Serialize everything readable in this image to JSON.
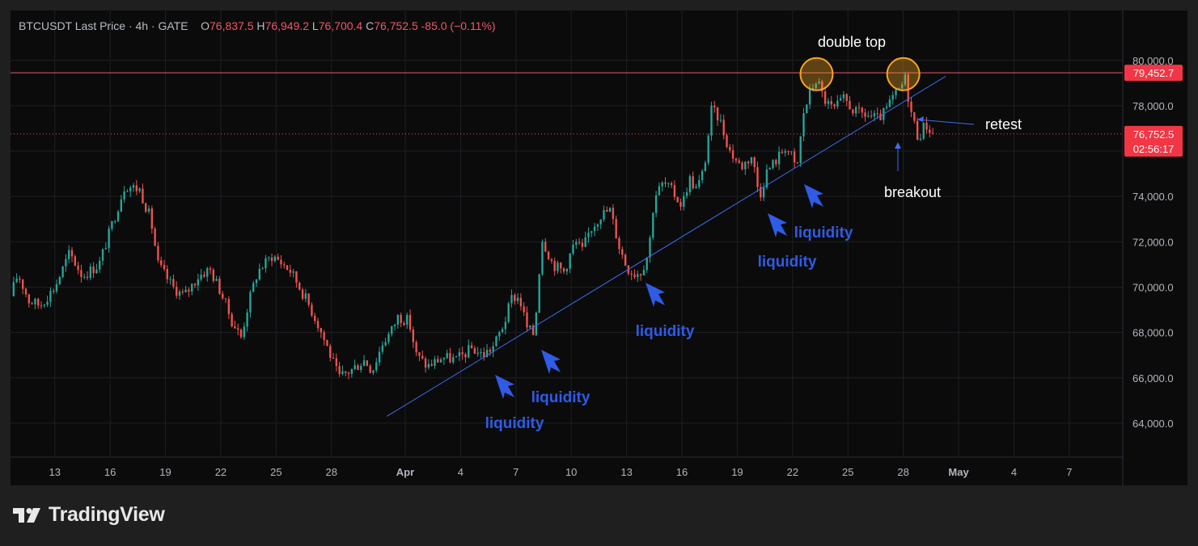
{
  "header": {
    "symbol": "BTCUSDT Last Price",
    "interval": "4h",
    "exchange": "GATE",
    "open_label": "O",
    "open": "76,837.5",
    "high_label": "H",
    "high": "76,949.2",
    "low_label": "L",
    "low": "76,700.4",
    "close_label": "C",
    "close": "76,752.5",
    "change": "-85.0 (−0.11%)"
  },
  "brand": {
    "name": "TradingView",
    "icon": "tradingview-logo-icon"
  },
  "colors": {
    "background": "#0b0b0b",
    "frame": "#1f1f1f",
    "up": "#26a69a",
    "down": "#ef5350",
    "trendline": "#3b6cf0",
    "annotation_blue": "#2f5be6",
    "resistance": "#f0576a",
    "circle": "#f5a623"
  },
  "chart_data": {
    "type": "candlestick",
    "symbol": "BTCUSDT",
    "timeframe": "4h",
    "ylim": [
      62500,
      82200
    ],
    "y_ticks": [
      64000,
      66000,
      68000,
      70000,
      72000,
      74000,
      76000,
      78000,
      80000
    ],
    "y_tick_labels": [
      "64,000.0",
      "66,000.0",
      "68,000.0",
      "70,000.0",
      "72,000.0",
      "74,000.0",
      "76,000.0",
      "78,000.0",
      "80,000.0"
    ],
    "x_ticks": [
      {
        "day": 10,
        "label": "13"
      },
      {
        "day": 13,
        "label": "16"
      },
      {
        "day": 16,
        "label": "19"
      },
      {
        "day": 19,
        "label": "22"
      },
      {
        "day": 22,
        "label": "25"
      },
      {
        "day": 25,
        "label": "28"
      },
      {
        "day": 29,
        "label": "Apr"
      },
      {
        "day": 32,
        "label": "4"
      },
      {
        "day": 35,
        "label": "7"
      },
      {
        "day": 38,
        "label": "10"
      },
      {
        "day": 41,
        "label": "13"
      },
      {
        "day": 44,
        "label": "16"
      },
      {
        "day": 47,
        "label": "19"
      },
      {
        "day": 50,
        "label": "22"
      },
      {
        "day": 53,
        "label": "25"
      },
      {
        "day": 56,
        "label": "28"
      },
      {
        "day": 59,
        "label": "May"
      },
      {
        "day": 62,
        "label": "4"
      },
      {
        "day": 65,
        "label": "7"
      }
    ],
    "x_days_start": 7.6,
    "x_days_end": 67.9,
    "price_path": [
      [
        7.6,
        69600
      ],
      [
        8.0,
        70600
      ],
      [
        8.6,
        69400
      ],
      [
        9.2,
        69200
      ],
      [
        10.0,
        70000
      ],
      [
        10.8,
        71500
      ],
      [
        11.5,
        70500
      ],
      [
        12.4,
        71000
      ],
      [
        13.2,
        73000
      ],
      [
        13.8,
        74500
      ],
      [
        14.6,
        74300
      ],
      [
        15.2,
        73000
      ],
      [
        15.6,
        71000
      ],
      [
        16.4,
        70000
      ],
      [
        17.0,
        69600
      ],
      [
        17.8,
        70500
      ],
      [
        18.4,
        70800
      ],
      [
        19.0,
        69800
      ],
      [
        19.6,
        68500
      ],
      [
        20.1,
        67800
      ],
      [
        20.5,
        69300
      ],
      [
        21.0,
        70700
      ],
      [
        21.8,
        71400
      ],
      [
        22.4,
        71000
      ],
      [
        22.8,
        70700
      ],
      [
        23.6,
        69500
      ],
      [
        24.2,
        68500
      ],
      [
        24.8,
        67300
      ],
      [
        25.4,
        66000
      ],
      [
        26.0,
        66300
      ],
      [
        26.8,
        66800
      ],
      [
        27.2,
        66300
      ],
      [
        27.8,
        67600
      ],
      [
        28.2,
        68000
      ],
      [
        28.6,
        68700
      ],
      [
        29.2,
        68500
      ],
      [
        29.6,
        67000
      ],
      [
        30.2,
        66500
      ],
      [
        31.0,
        66900
      ],
      [
        31.8,
        66800
      ],
      [
        32.6,
        67300
      ],
      [
        33.2,
        67000
      ],
      [
        33.8,
        67400
      ],
      [
        34.4,
        68500
      ],
      [
        34.8,
        69600
      ],
      [
        35.2,
        69500
      ],
      [
        35.6,
        68200
      ],
      [
        36.0,
        67900
      ],
      [
        36.4,
        72200
      ],
      [
        37.0,
        71000
      ],
      [
        37.6,
        70700
      ],
      [
        38.2,
        72000
      ],
      [
        38.6,
        71600
      ],
      [
        39.0,
        72500
      ],
      [
        39.6,
        73200
      ],
      [
        40.1,
        73400
      ],
      [
        40.6,
        71800
      ],
      [
        41.0,
        70900
      ],
      [
        41.4,
        70600
      ],
      [
        41.8,
        70700
      ],
      [
        42.2,
        71600
      ],
      [
        42.5,
        74000
      ],
      [
        43.0,
        74600
      ],
      [
        43.5,
        74200
      ],
      [
        44.0,
        73600
      ],
      [
        44.4,
        74800
      ],
      [
        44.8,
        74300
      ],
      [
        45.2,
        75200
      ],
      [
        45.6,
        77800
      ],
      [
        46.0,
        77500
      ],
      [
        46.6,
        76000
      ],
      [
        47.2,
        75300
      ],
      [
        47.8,
        75800
      ],
      [
        48.2,
        74000
      ],
      [
        48.6,
        75100
      ],
      [
        49.2,
        75700
      ],
      [
        49.6,
        76200
      ],
      [
        50.0,
        75700
      ],
      [
        50.2,
        75000
      ],
      [
        50.6,
        77700
      ],
      [
        51.0,
        78700
      ],
      [
        51.3,
        79200
      ],
      [
        51.7,
        78300
      ],
      [
        52.2,
        77800
      ],
      [
        52.8,
        78300
      ],
      [
        53.4,
        77700
      ],
      [
        54.0,
        77600
      ],
      [
        54.6,
        77400
      ],
      [
        55.0,
        77700
      ],
      [
        55.4,
        78300
      ],
      [
        55.8,
        78700
      ],
      [
        56.1,
        79200
      ],
      [
        56.4,
        77800
      ],
      [
        56.8,
        76600
      ],
      [
        57.2,
        77200
      ],
      [
        57.6,
        76750
      ]
    ],
    "trendline": [
      [
        28.0,
        64300
      ],
      [
        58.3,
        79300
      ]
    ],
    "resistance_level": 79452.7,
    "last_price": 76752.5,
    "price_label": "79,452.7",
    "last_price_label": "76,752.5",
    "countdown": "02:56:17",
    "annotations": {
      "double_top": "double top",
      "retest": "retest",
      "breakout": "breakout",
      "liquidity_1": "liquidity",
      "liquidity_2": "liquidity",
      "liquidity_3": "liquidity",
      "liquidity_4": "liquidity",
      "liquidity_5": "liquidity"
    },
    "double_top_points": [
      [
        51.3,
        79500
      ],
      [
        56.0,
        79500
      ]
    ]
  }
}
